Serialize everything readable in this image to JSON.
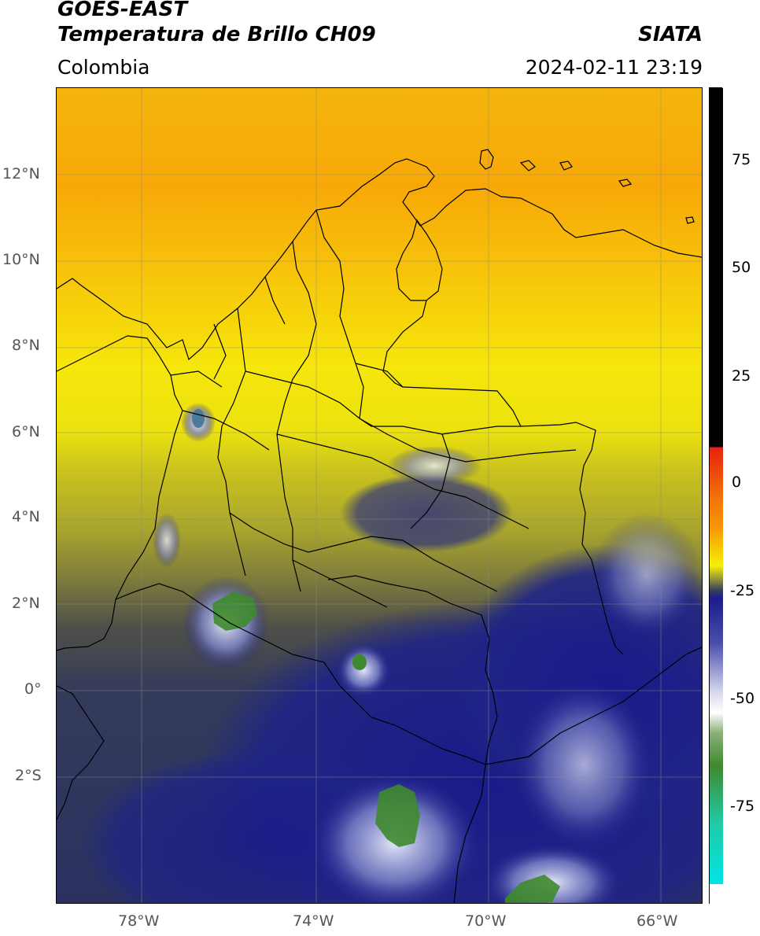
{
  "header": {
    "satellite": "GOES-EAST",
    "product": "Temperatura de Brillo CH09",
    "region": "Colombia",
    "agency": "SIATA",
    "datetime": "2024-02-11 23:19"
  },
  "map": {
    "lat_ticks": [
      "12°N",
      "10°N",
      "8°N",
      "6°N",
      "4°N",
      "2°N",
      "0°",
      "2°S"
    ],
    "lon_ticks": [
      "78°W",
      "74°W",
      "70°W",
      "66°W"
    ],
    "extent": {
      "lon_min": -80,
      "lon_max": -65,
      "lat_min": -5,
      "lat_max": 14
    }
  },
  "colorbar": {
    "labels": [
      "75",
      "50",
      "25",
      "0",
      "-25",
      "-50",
      "-75"
    ],
    "colors": {
      "warm": "#000000",
      "red": "#e8210e",
      "orange": "#f59a05",
      "yellow": "#f6f00a",
      "olive": "#9a9a36",
      "slate": "#3a3f5a",
      "navy": "#1c1c8c",
      "white": "#ffffff",
      "green": "#3e8a2e",
      "teal": "#22c9a6",
      "cyan": "#00e5e5"
    }
  }
}
